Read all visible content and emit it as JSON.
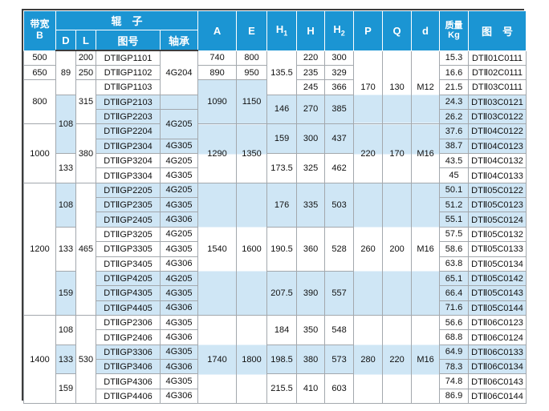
{
  "header": {
    "bandwidth": {
      "line1": "带宽",
      "line2": "B"
    },
    "roller_group": "辊　子",
    "roller_cols": {
      "d": "D",
      "l": "L",
      "tuhao": "图号",
      "zhoucheng": "轴承"
    },
    "cols": {
      "a": "A",
      "e": "E",
      "h1": {
        "base": "H",
        "sub": "1"
      },
      "h": "H",
      "h2": {
        "base": "H",
        "sub": "2"
      },
      "p": "P",
      "q": "Q",
      "d": "d"
    },
    "mass": {
      "line1": "质量",
      "line2": "Kg"
    },
    "drawing": "图　号"
  },
  "style": {
    "header_blue": "#1b95d3",
    "stripe_blue": "#cfe6f5",
    "grid_gray": "#a3a8ad",
    "frame_dark": "#3c3c3c",
    "blue_rows": [
      3,
      4,
      5,
      6,
      9,
      10,
      11,
      15,
      16,
      17,
      20,
      21
    ]
  },
  "body": {
    "b": [
      {
        "v": "500",
        "s": 1
      },
      {
        "v": "650",
        "s": 1
      },
      {
        "v": "800",
        "s": 3,
        "bg": "w"
      },
      {
        "v": "1000",
        "s": 4,
        "bg": "w"
      },
      {
        "v": "1200",
        "s": 9,
        "bg": "w"
      },
      {
        "v": "1400",
        "s": 6,
        "bg": "w"
      }
    ],
    "d": [
      {
        "v": "89",
        "s": 3
      },
      {
        "v": "108",
        "s": 4
      },
      {
        "v": "133",
        "s": 2
      },
      {
        "v": "108",
        "s": 3
      },
      {
        "v": "133",
        "s": 3
      },
      {
        "v": "159",
        "s": 3
      },
      {
        "v": "108",
        "s": 2
      },
      {
        "v": "133",
        "s": 2
      },
      {
        "v": "159",
        "s": 2
      }
    ],
    "l": [
      {
        "v": "200",
        "s": 1
      },
      {
        "v": "250",
        "s": 1
      },
      {
        "v": "315",
        "s": 3,
        "bg": "w"
      },
      {
        "v": "380",
        "s": 4,
        "bg": "w"
      },
      {
        "v": "465",
        "s": 9,
        "bg": "w"
      },
      {
        "v": "530",
        "s": 6,
        "bg": "w"
      }
    ],
    "roller_no": [
      {
        "v": "DTⅡGP1101",
        "s": 1
      },
      {
        "v": "DTⅡGP1102",
        "s": 1
      },
      {
        "v": "DTⅡGP1103",
        "s": 1
      },
      {
        "v": "DTⅡGP2103",
        "s": 1
      },
      {
        "v": "DTⅡGP2203",
        "s": 1
      },
      {
        "v": "DTⅡGP2204",
        "s": 1
      },
      {
        "v": "DTⅡGP2304",
        "s": 1
      },
      {
        "v": "DTⅡGP3204",
        "s": 1
      },
      {
        "v": "DTⅡGP3304",
        "s": 1
      },
      {
        "v": "DTⅡGP2205",
        "s": 1
      },
      {
        "v": "DTⅡGP2305",
        "s": 1
      },
      {
        "v": "DTⅡGP2405",
        "s": 1
      },
      {
        "v": "DTⅡGP3205",
        "s": 1
      },
      {
        "v": "DTⅡGP3305",
        "s": 1
      },
      {
        "v": "DTⅡGP3405",
        "s": 1
      },
      {
        "v": "DTⅡGP4205",
        "s": 1
      },
      {
        "v": "DTⅡGP4305",
        "s": 1
      },
      {
        "v": "DTⅡGP4405",
        "s": 1
      },
      {
        "v": "DTⅡGP2306",
        "s": 1
      },
      {
        "v": "DTⅡGP2406",
        "s": 1
      },
      {
        "v": "DTⅡGP3306",
        "s": 1
      },
      {
        "v": "DTⅡGP3406",
        "s": 1
      },
      {
        "v": "DTⅡGP4306",
        "s": 1
      },
      {
        "v": "DTⅡGP4406",
        "s": 1
      }
    ],
    "bearing": [
      {
        "v": "4G204",
        "s": 3
      },
      {
        "v": "",
        "s": 1
      },
      {
        "v": "4G205",
        "s": 2
      },
      {
        "v": "4G305",
        "s": 1
      },
      {
        "v": "4G205",
        "s": 1
      },
      {
        "v": "4G305",
        "s": 1
      },
      {
        "v": "4G205",
        "s": 1
      },
      {
        "v": "4G305",
        "s": 1
      },
      {
        "v": "4G306",
        "s": 1
      },
      {
        "v": "4G205",
        "s": 1
      },
      {
        "v": "4G305",
        "s": 1
      },
      {
        "v": "4G306",
        "s": 1
      },
      {
        "v": "4G205",
        "s": 1
      },
      {
        "v": "4G305",
        "s": 1
      },
      {
        "v": "4G306",
        "s": 1
      },
      {
        "v": "4G305",
        "s": 1
      },
      {
        "v": "4G306",
        "s": 1
      },
      {
        "v": "4G305",
        "s": 1
      },
      {
        "v": "4G306",
        "s": 1
      },
      {
        "v": "4G305",
        "s": 1
      },
      {
        "v": "4G306",
        "s": 1
      }
    ],
    "a": [
      {
        "v": "740",
        "s": 1
      },
      {
        "v": "890",
        "s": 1
      },
      {
        "v": "1090",
        "s": 3,
        "bg": "bb"
      },
      {
        "v": "1290",
        "s": 4,
        "bg": "g69"
      },
      {
        "v": "1540",
        "s": 9,
        "bg": "g1018"
      },
      {
        "v": "1740",
        "s": 6,
        "bg": "g1924"
      }
    ],
    "e": [
      {
        "v": "800",
        "s": 1
      },
      {
        "v": "950",
        "s": 1
      },
      {
        "v": "1150",
        "s": 3,
        "bg": "bb"
      },
      {
        "v": "1350",
        "s": 4,
        "bg": "g69"
      },
      {
        "v": "1600",
        "s": 9,
        "bg": "g1018"
      },
      {
        "v": "1800",
        "s": 6,
        "bg": "g1924"
      }
    ],
    "h1": [
      {
        "v": "135.5",
        "s": 3
      },
      {
        "v": "146",
        "s": 2
      },
      {
        "v": "159",
        "s": 2
      },
      {
        "v": "173.5",
        "s": 2
      },
      {
        "v": "176",
        "s": 3
      },
      {
        "v": "190.5",
        "s": 3
      },
      {
        "v": "207.5",
        "s": 3
      },
      {
        "v": "184",
        "s": 2
      },
      {
        "v": "198.5",
        "s": 2
      },
      {
        "v": "215.5",
        "s": 2
      }
    ],
    "h": [
      {
        "v": "220",
        "s": 1
      },
      {
        "v": "235",
        "s": 1
      },
      {
        "v": "245",
        "s": 1
      },
      {
        "v": "270",
        "s": 2
      },
      {
        "v": "300",
        "s": 2
      },
      {
        "v": "325",
        "s": 2
      },
      {
        "v": "335",
        "s": 3
      },
      {
        "v": "360",
        "s": 3
      },
      {
        "v": "390",
        "s": 3
      },
      {
        "v": "350",
        "s": 2
      },
      {
        "v": "380",
        "s": 2
      },
      {
        "v": "410",
        "s": 2
      }
    ],
    "h2": [
      {
        "v": "300",
        "s": 1
      },
      {
        "v": "329",
        "s": 1
      },
      {
        "v": "366",
        "s": 1
      },
      {
        "v": "385",
        "s": 2
      },
      {
        "v": "437",
        "s": 2
      },
      {
        "v": "462",
        "s": 2
      },
      {
        "v": "503",
        "s": 3
      },
      {
        "v": "528",
        "s": 3
      },
      {
        "v": "557",
        "s": 3
      },
      {
        "v": "548",
        "s": 2
      },
      {
        "v": "573",
        "s": 2
      },
      {
        "v": "603",
        "s": 2
      }
    ],
    "p": [
      {
        "v": "170",
        "s": 5,
        "bg": "g15"
      },
      {
        "v": "220",
        "s": 4,
        "bg": "g69"
      },
      {
        "v": "260",
        "s": 9,
        "bg": "g1018"
      },
      {
        "v": "280",
        "s": 6,
        "bg": "g1924"
      }
    ],
    "q": [
      {
        "v": "130",
        "s": 5,
        "bg": "g15"
      },
      {
        "v": "170",
        "s": 4,
        "bg": "g69"
      },
      {
        "v": "200",
        "s": 9,
        "bg": "g1018"
      },
      {
        "v": "220",
        "s": 6,
        "bg": "g1924"
      }
    ],
    "dd": [
      {
        "v": "M12",
        "s": 5,
        "bg": "g15"
      },
      {
        "v": "M16",
        "s": 4,
        "bg": "g69"
      },
      {
        "v": "M16",
        "s": 9,
        "bg": "g1018"
      },
      {
        "v": "M16",
        "s": 6,
        "bg": "g1924"
      }
    ],
    "kg": [
      {
        "v": "15.3",
        "s": 1
      },
      {
        "v": "16.6",
        "s": 1
      },
      {
        "v": "21.5",
        "s": 1
      },
      {
        "v": "24.3",
        "s": 1
      },
      {
        "v": "26.2",
        "s": 1
      },
      {
        "v": "37.6",
        "s": 1
      },
      {
        "v": "38.7",
        "s": 1
      },
      {
        "v": "43.5",
        "s": 1
      },
      {
        "v": "45",
        "s": 1
      },
      {
        "v": "50.1",
        "s": 1
      },
      {
        "v": "51.2",
        "s": 1
      },
      {
        "v": "55.1",
        "s": 1
      },
      {
        "v": "57.5",
        "s": 1
      },
      {
        "v": "58.6",
        "s": 1
      },
      {
        "v": "63.8",
        "s": 1
      },
      {
        "v": "65.1",
        "s": 1
      },
      {
        "v": "66.4",
        "s": 1
      },
      {
        "v": "71.6",
        "s": 1
      },
      {
        "v": "56.6",
        "s": 1
      },
      {
        "v": "68.8",
        "s": 1
      },
      {
        "v": "64.9",
        "s": 1
      },
      {
        "v": "78.3",
        "s": 1
      },
      {
        "v": "74.8",
        "s": 1
      },
      {
        "v": "86.9",
        "s": 1
      }
    ],
    "dwg": [
      {
        "v": "DTⅡ01C0111",
        "s": 1
      },
      {
        "v": "DTⅡ02C0111",
        "s": 1
      },
      {
        "v": "DTⅡ03C0111",
        "s": 1
      },
      {
        "v": "DTⅡ03C0121",
        "s": 1
      },
      {
        "v": "DTⅡ03C0122",
        "s": 1
      },
      {
        "v": "DTⅡ04C0122",
        "s": 1
      },
      {
        "v": "DTⅡ04C0123",
        "s": 1
      },
      {
        "v": "DTⅡ04C0132",
        "s": 1
      },
      {
        "v": "DTⅡ04C0133",
        "s": 1
      },
      {
        "v": "DTⅡ05C0122",
        "s": 1
      },
      {
        "v": "DTⅡ05C0123",
        "s": 1
      },
      {
        "v": "DTⅡ05C0124",
        "s": 1
      },
      {
        "v": "DTⅡ05C0132",
        "s": 1
      },
      {
        "v": "DTⅡ05C0133",
        "s": 1
      },
      {
        "v": "DTⅡ05C0134",
        "s": 1
      },
      {
        "v": "DTⅡ05C0142",
        "s": 1
      },
      {
        "v": "DTⅡ05C0143",
        "s": 1
      },
      {
        "v": "DTⅡ05C0144",
        "s": 1
      },
      {
        "v": "DTⅡ06C0123",
        "s": 1
      },
      {
        "v": "DTⅡ06C0124",
        "s": 1
      },
      {
        "v": "DTⅡ06C0133",
        "s": 1
      },
      {
        "v": "DTⅡ06C0134",
        "s": 1
      },
      {
        "v": "DTⅡ06C0143",
        "s": 1
      },
      {
        "v": "DTⅡ06C0144",
        "s": 1
      }
    ]
  }
}
